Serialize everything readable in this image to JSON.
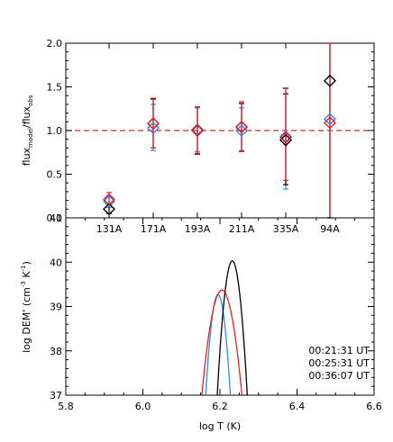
{
  "chart_data": [
    {
      "type": "scatter",
      "title": "",
      "ylabel_parts": {
        "a": "flux",
        "b": "model",
        "c": "/flux",
        "d": "obs"
      },
      "categories": [
        "131A",
        "171A",
        "193A",
        "211A",
        "335A",
        "94A"
      ],
      "yticks": [
        "0.0",
        "0.5",
        "1.0",
        "1.5",
        "2.0"
      ],
      "ylim": [
        0,
        2.0
      ],
      "reference_line": 1.0,
      "series": [
        {
          "color": "#2b8fe8",
          "values": [
            0.19,
            1.03,
            1.01,
            1.0,
            0.93,
            1.13
          ],
          "err_low": [
            0.12,
            0.77,
            0.76,
            0.77,
            0.33,
            0.0
          ],
          "err_high": [
            0.25,
            1.3,
            1.26,
            1.26,
            1.49,
            2.0
          ]
        },
        {
          "color": "#000000",
          "values": [
            0.1,
            1.08,
            1.0,
            1.04,
            0.89,
            1.57
          ],
          "err_low": [
            0.05,
            0.8,
            0.73,
            0.76,
            0.38,
            0.0
          ],
          "err_high": [
            0.15,
            1.36,
            1.27,
            1.31,
            1.42,
            2.0
          ]
        },
        {
          "color": "#e62020",
          "values": [
            0.21,
            1.08,
            1.0,
            1.04,
            0.92,
            1.09
          ],
          "err_low": [
            0.14,
            0.8,
            0.74,
            0.76,
            0.43,
            0.0
          ],
          "err_high": [
            0.29,
            1.37,
            1.27,
            1.33,
            1.48,
            2.0
          ]
        }
      ]
    },
    {
      "type": "line",
      "title": "",
      "xlabel": "log T (K)",
      "ylabel": "log DEM' (cm",
      "ylabel_exp1": "-3",
      "ylabel_mid": " K",
      "ylabel_exp2": "-1",
      "ylabel_end": ")",
      "xticks": [
        "5.8",
        "6.0",
        "6.2",
        "6.4",
        "6.6"
      ],
      "yticks": [
        "37",
        "38",
        "39",
        "40",
        "41"
      ],
      "xlim": [
        5.8,
        6.6
      ],
      "ylim": [
        37,
        41
      ],
      "legend_position": "bottom-right",
      "series": [
        {
          "name": "00:21:31 UT",
          "color": "#2b8fe8",
          "center": 6.195,
          "peak": 39.27,
          "halfwidth": 0.032
        },
        {
          "name": "00:25:31 UT",
          "color": "#000000",
          "center": 6.232,
          "peak": 40.03,
          "halfwidth": 0.039
        },
        {
          "name": "00:36:07 UT",
          "color": "#e62020",
          "center": 6.205,
          "peak": 39.37,
          "halfwidth": 0.052
        }
      ]
    }
  ]
}
